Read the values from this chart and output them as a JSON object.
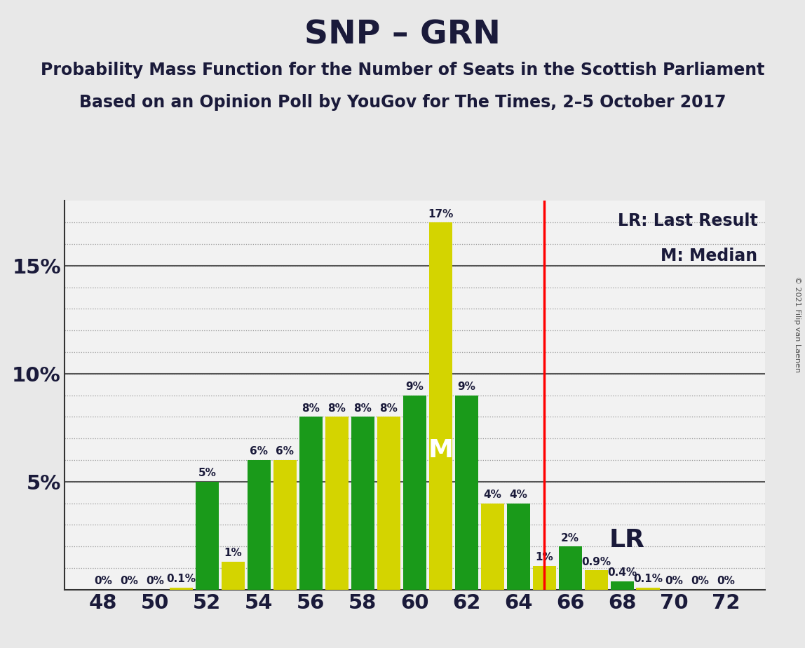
{
  "title": "SNP – GRN",
  "subtitle1": "Probability Mass Function for the Number of Seats in the Scottish Parliament",
  "subtitle2": "Based on an Opinion Poll by YouGov for The Times, 2–5 October 2017",
  "copyright": "© 2021 Filip van Laenen",
  "seats": [
    48,
    49,
    50,
    51,
    52,
    53,
    54,
    55,
    56,
    57,
    58,
    59,
    60,
    61,
    62,
    63,
    64,
    65,
    66,
    67,
    68,
    69,
    70,
    71,
    72
  ],
  "snp_values": [
    0.0,
    0.0,
    0.0,
    0.1,
    5.0,
    1.3,
    6.0,
    6.0,
    8.0,
    8.0,
    8.0,
    8.0,
    9.0,
    17.0,
    9.0,
    4.0,
    4.0,
    1.1,
    2.0,
    0.9,
    0.4,
    0.1,
    0.0,
    0.0,
    0.0
  ],
  "grn_values": [
    0.0,
    0.0,
    0.0,
    0.0,
    0.6,
    0.0,
    6.0,
    0.0,
    8.0,
    0.0,
    8.0,
    0.0,
    9.0,
    0.0,
    9.0,
    0.0,
    6.0,
    0.0,
    2.0,
    0.0,
    0.2,
    0.0,
    0.0,
    0.0,
    0.0
  ],
  "snp_color": "#1a9a1a",
  "grn_color": "#d4d400",
  "bar_width": 0.9,
  "lr_line_x": 65.0,
  "median_seat": 61,
  "lr_label": "LR",
  "ylim": [
    0,
    18
  ],
  "yticks": [
    5,
    10,
    15
  ],
  "ytick_labels": [
    "5%",
    "10%",
    "15%"
  ],
  "minor_yticks": [
    1,
    2,
    3,
    4,
    5,
    6,
    7,
    8,
    9,
    10,
    11,
    12,
    13,
    14,
    15,
    16,
    17
  ],
  "xticks": [
    48,
    50,
    52,
    54,
    56,
    58,
    60,
    62,
    64,
    66,
    68,
    70,
    72
  ],
  "xlim_left": 46.5,
  "xlim_right": 73.5,
  "background_color": "#e8e8e8",
  "plot_background": "#f2f2f2",
  "grid_color": "#999999",
  "title_fontsize": 34,
  "subtitle_fontsize": 17,
  "axis_fontsize": 21,
  "legend_fontsize": 17,
  "bar_label_fontsize": 11,
  "copyright_fontsize": 8,
  "median_fontsize": 26,
  "lr_fontsize": 26
}
